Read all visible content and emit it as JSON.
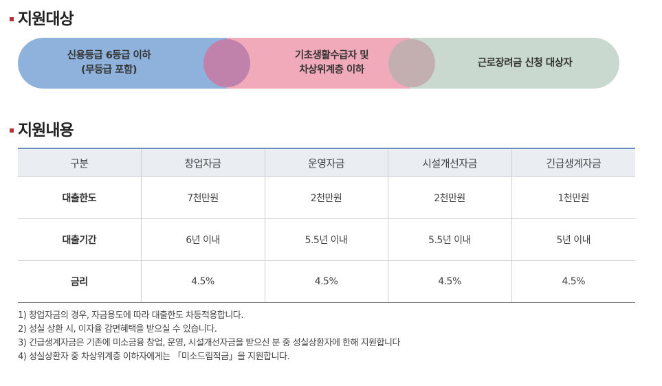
{
  "sections": {
    "target_title": "지원대상",
    "content_title": "지원내용"
  },
  "targets": [
    {
      "label": "신용등급 6등급 이하\n(무등급 포함)",
      "color": "#8eb2db"
    },
    {
      "label": "기초생활수급자 및\n차상위계층 이하",
      "color": "#f0aab9"
    },
    {
      "label": "근로장려금 신청 대상자",
      "color": "#cad9cf"
    }
  ],
  "table": {
    "headers": [
      "구분",
      "창업자금",
      "운영자금",
      "시설개선자금",
      "긴급생계자금"
    ],
    "rows": [
      {
        "label": "대출한도",
        "values": [
          "7천만원",
          "2천만원",
          "2천만원",
          "1천만원"
        ]
      },
      {
        "label": "대출기간",
        "values": [
          "6년 이내",
          "5.5년 이내",
          "5.5년 이내",
          "5년 이내"
        ]
      },
      {
        "label": "금리",
        "values": [
          "4.5%",
          "4.5%",
          "4.5%",
          "4.5%"
        ]
      }
    ]
  },
  "notes": [
    "1) 창업자금의 경우, 자금용도에 따라 대출한도 차등적용합니다.",
    "2) 성실 상환 시, 이자율 감면혜택을 받으실 수 있습니다.",
    "3) 긴급생계자금은 기존에 미소금융 창업, 운영, 시설개선자금을 받으신 분 중 성실상환자에 한해 지원합니다",
    "4) 성실상환자 중 차상위계층 이하자에게는 「미소드림적금」을 지원합니다."
  ],
  "colors": {
    "accent_bullet": "#b8323a",
    "table_top_border": "#6b8fc1"
  }
}
